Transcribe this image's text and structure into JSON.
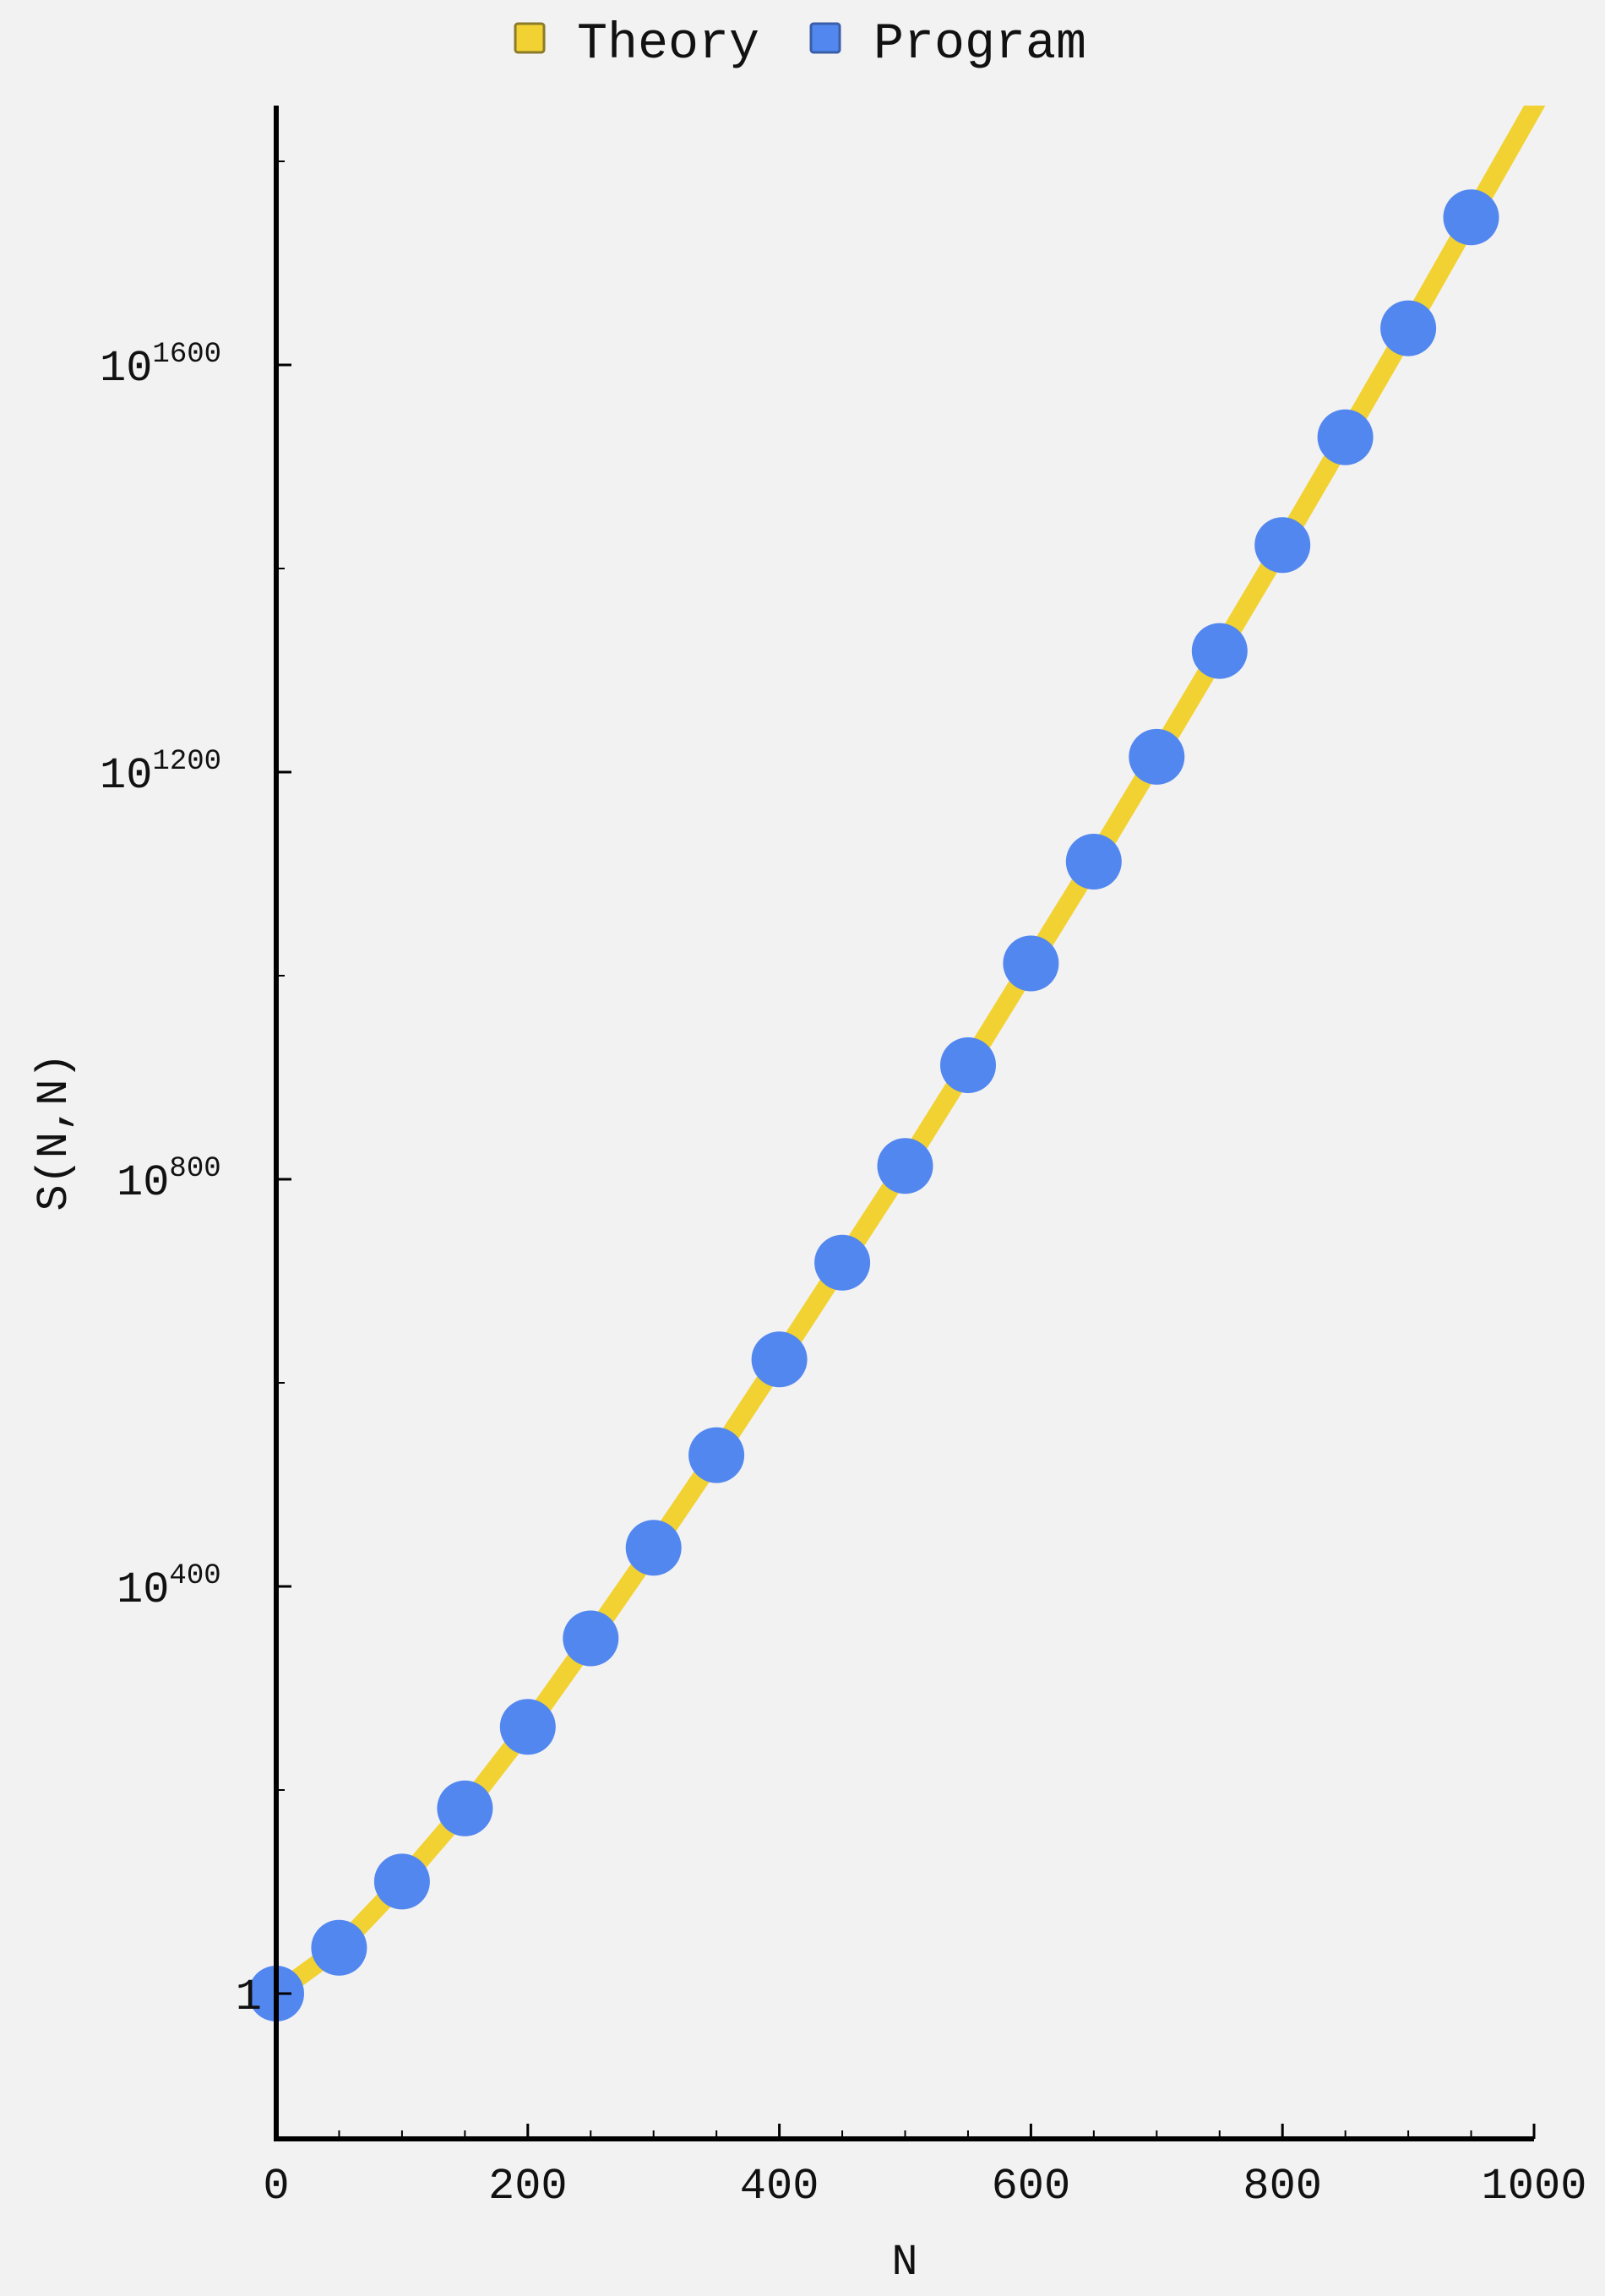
{
  "chart_data": {
    "type": "line",
    "title": "",
    "xlabel": "N",
    "ylabel": "S(N,N)",
    "xlim": [
      0,
      1000
    ],
    "y_scale": "log10",
    "ylim_log10": [
      -170,
      2030
    ],
    "legend_position": "top-center",
    "grid": false,
    "colors": {
      "theory": "#f2d232",
      "program": "#5387f0",
      "background": "#f2f2f2",
      "axis": "#000000"
    },
    "x_ticks": [
      {
        "value": 0,
        "label": "0"
      },
      {
        "value": 200,
        "label": "200"
      },
      {
        "value": 400,
        "label": "400"
      },
      {
        "value": 600,
        "label": "600"
      },
      {
        "value": 800,
        "label": "800"
      },
      {
        "value": 1000,
        "label": "1000"
      }
    ],
    "y_ticks": [
      {
        "log10": 0,
        "base": "1",
        "exp": ""
      },
      {
        "log10": 400,
        "base": "10",
        "exp": "400"
      },
      {
        "log10": 800,
        "base": "10",
        "exp": "800"
      },
      {
        "log10": 1200,
        "base": "10",
        "exp": "1200"
      },
      {
        "log10": 1600,
        "base": "10",
        "exp": "1600"
      }
    ],
    "series": [
      {
        "name": "Theory",
        "style": "line",
        "x": [
          0,
          50,
          100,
          150,
          200,
          250,
          300,
          350,
          400,
          450,
          500,
          550,
          600,
          650,
          700,
          750,
          800,
          850,
          900,
          950,
          1025
        ],
        "log10_y": [
          0,
          45,
          110,
          182,
          262,
          349,
          438,
          529,
          623,
          718,
          813,
          912,
          1012,
          1112,
          1215,
          1319,
          1423,
          1529,
          1636,
          1745,
          1908
        ]
      },
      {
        "name": "Program",
        "style": "points",
        "x": [
          0,
          50,
          100,
          150,
          200,
          250,
          300,
          350,
          400,
          450,
          500,
          550,
          600,
          650,
          700,
          750,
          800,
          850,
          900,
          950
        ],
        "log10_y": [
          0,
          45,
          110,
          182,
          262,
          349,
          438,
          529,
          623,
          718,
          813,
          912,
          1012,
          1112,
          1215,
          1319,
          1423,
          1529,
          1636,
          1745
        ]
      }
    ]
  }
}
